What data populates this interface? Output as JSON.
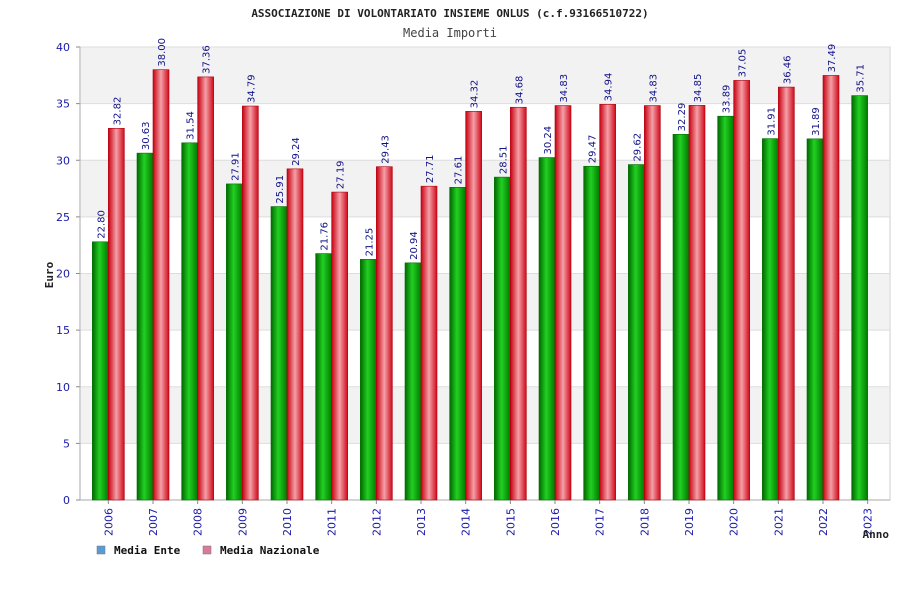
{
  "chart_data": {
    "type": "bar",
    "title": "ASSOCIAZIONE DI VOLONTARIATO INSIEME ONLUS (c.f.93166510722)",
    "subtitle": "Media Importi",
    "ylabel": "Euro",
    "xlabel": "Anno",
    "ylim": [
      0,
      40
    ],
    "y_ticks": [
      0,
      5,
      10,
      15,
      20,
      25,
      30,
      35,
      40
    ],
    "grid": true,
    "legend_position": "bottom-left",
    "categories": [
      "2006",
      "2007",
      "2008",
      "2009",
      "2010",
      "2011",
      "2012",
      "2013",
      "2014",
      "2015",
      "2016",
      "2017",
      "2018",
      "2019",
      "2020",
      "2021",
      "2022",
      "2023"
    ],
    "series": [
      {
        "name": "Media Ente",
        "legend_color": "#5b9bd5",
        "bar_color": "#00a000",
        "values": [
          22.8,
          30.63,
          31.54,
          27.91,
          25.91,
          21.76,
          21.25,
          20.94,
          27.61,
          28.51,
          30.24,
          29.47,
          29.62,
          32.29,
          33.89,
          31.91,
          31.89,
          35.71
        ],
        "labels": [
          "22.80",
          "30.63",
          "31.54",
          "27.91",
          "25.91",
          "21.76",
          "21.25",
          "20.94",
          "27.61",
          "28.51",
          "30.24",
          "29.47",
          "29.62",
          "32.29",
          "33.89",
          "31.91",
          "31.89",
          "35.71"
        ]
      },
      {
        "name": "Media Nazionale",
        "legend_color": "#d87a9a",
        "bar_color": "#e01020",
        "values": [
          32.82,
          38.0,
          37.36,
          34.79,
          29.24,
          27.19,
          29.43,
          27.71,
          34.32,
          34.68,
          34.83,
          34.94,
          34.83,
          34.85,
          37.05,
          36.46,
          37.49,
          null
        ],
        "labels": [
          "32.82",
          "38.00",
          "37.36",
          "34.79",
          "29.24",
          "27.19",
          "29.43",
          "27.71",
          "34.32",
          "34.68",
          "34.83",
          "34.94",
          "34.83",
          "34.85",
          "37.05",
          "36.46",
          "37.49",
          null
        ]
      }
    ]
  }
}
